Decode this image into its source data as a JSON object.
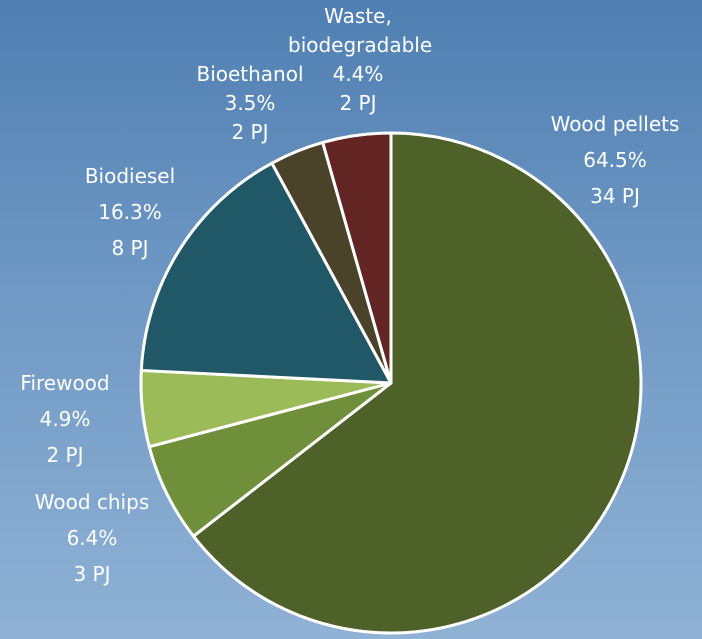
{
  "chart_data": {
    "type": "pie",
    "categories": [
      "Wood pellets",
      "Wood chips",
      "Firewood",
      "Biodiesel",
      "Bioethanol",
      "Waste, biodegradable"
    ],
    "values": [
      64.5,
      6.4,
      4.9,
      16.3,
      3.5,
      4.4
    ],
    "value_labels": [
      "64.5%",
      "6.4%",
      "4.9%",
      "16.3%",
      "3.5%",
      "4.4%"
    ],
    "energy_labels": [
      "34 PJ",
      "3 PJ",
      "2 PJ",
      "8 PJ",
      "2 PJ",
      "2 PJ"
    ],
    "colors": [
      "#4e6128",
      "#6f8f3a",
      "#9bbb59",
      "#215868",
      "#4a4229",
      "#632523"
    ]
  }
}
